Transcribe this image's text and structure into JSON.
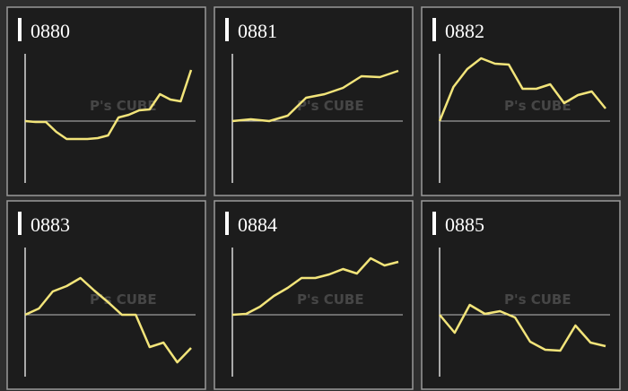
{
  "watermark": "P's CUBE",
  "chart_data": [
    {
      "type": "line",
      "title": "0880",
      "color": "#f2e47a",
      "ylim": [
        -65,
        75
      ],
      "values": [
        0,
        -1,
        -1,
        -12,
        -20,
        -20,
        -20,
        -19,
        -16,
        4,
        7,
        12,
        13,
        30,
        24,
        22,
        57
      ]
    },
    {
      "type": "line",
      "title": "0881",
      "color": "#f2e47a",
      "ylim": [
        -65,
        75
      ],
      "values": [
        0,
        2,
        0,
        6,
        26,
        30,
        37,
        50,
        49,
        56
      ]
    },
    {
      "type": "line",
      "title": "0882",
      "color": "#f2e47a",
      "ylim": [
        -65,
        75
      ],
      "values": [
        0,
        38,
        58,
        70,
        64,
        63,
        36,
        36,
        41,
        20,
        29,
        33,
        14
      ]
    },
    {
      "type": "line",
      "title": "0883",
      "color": "#f2e47a",
      "ylim": [
        -65,
        75
      ],
      "values": [
        0,
        7,
        26,
        32,
        41,
        27,
        14,
        0,
        0,
        -36,
        -31,
        -53,
        -37
      ]
    },
    {
      "type": "line",
      "title": "0884",
      "color": "#f2e47a",
      "ylim": [
        -65,
        75
      ],
      "values": [
        0,
        1,
        9,
        21,
        30,
        41,
        41,
        45,
        51,
        46,
        63,
        55,
        59
      ]
    },
    {
      "type": "line",
      "title": "0885",
      "color": "#f2e47a",
      "ylim": [
        -65,
        75
      ],
      "values": [
        0,
        -20,
        11,
        1,
        4,
        -3,
        -30,
        -39,
        -40,
        -12,
        -31,
        -35
      ]
    }
  ]
}
